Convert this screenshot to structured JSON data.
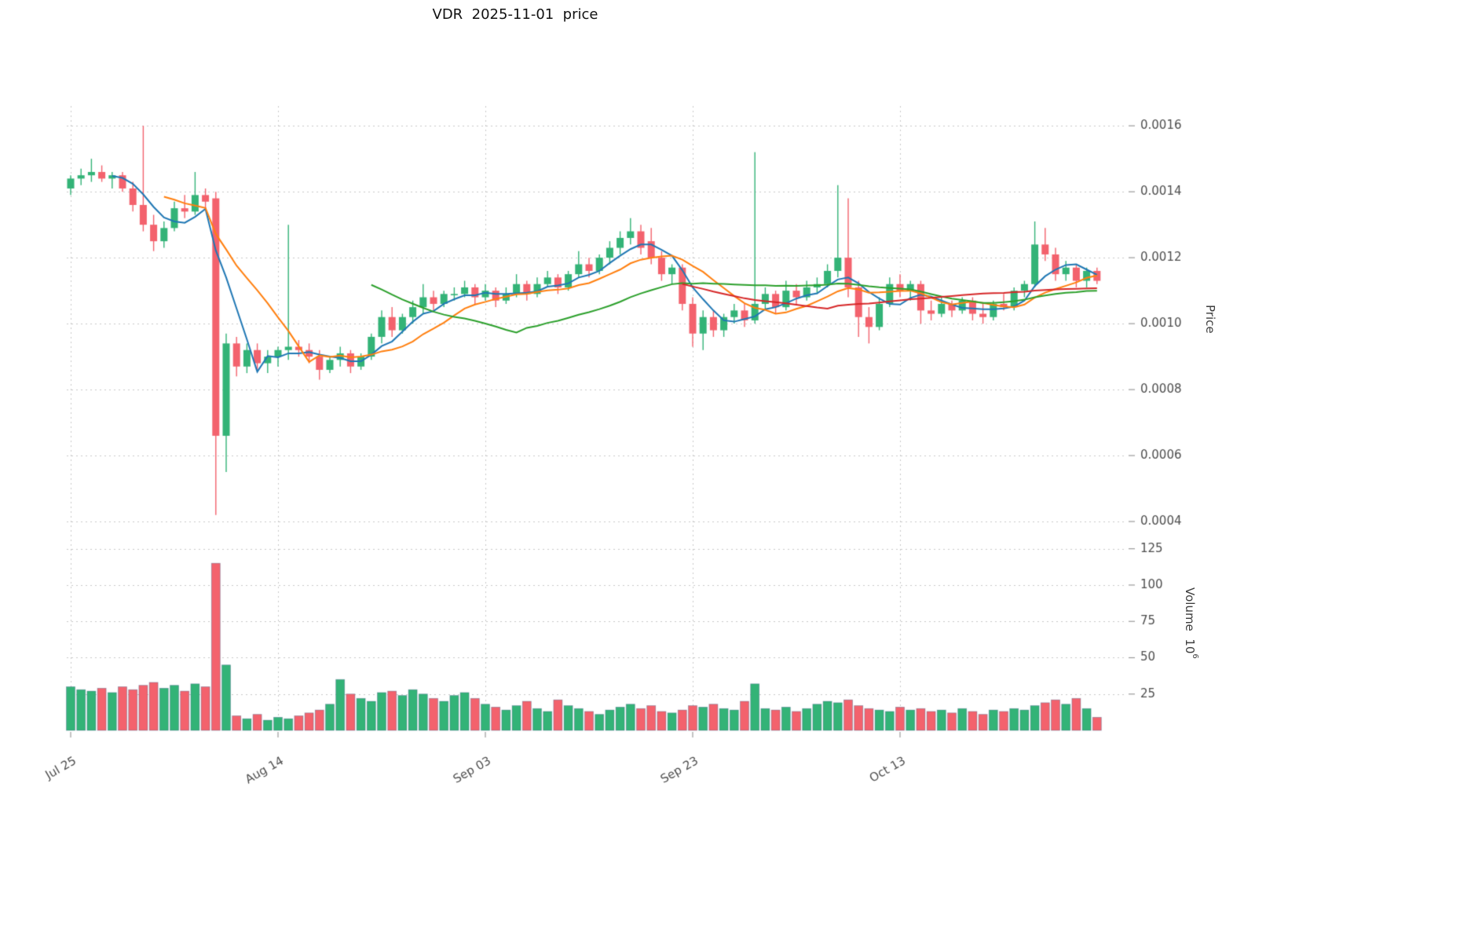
{
  "title": "VDR  2025-11-01  price",
  "axes": {
    "price_label": "Price",
    "volume_label": "Volume  10",
    "volume_exp": "6"
  },
  "chart_data": {
    "type": "candlestick+volume",
    "title": "VDR  2025-11-01  price",
    "x_ticks": [
      {
        "index": 0,
        "label": "Jul 25"
      },
      {
        "index": 20,
        "label": "Aug 14"
      },
      {
        "index": 40,
        "label": "Sep 03"
      },
      {
        "index": 60,
        "label": "Sep 23"
      },
      {
        "index": 80,
        "label": "Oct 13"
      }
    ],
    "price_ticks": [
      0.0004,
      0.0006,
      0.0008,
      0.001,
      0.0012,
      0.0014,
      0.0016
    ],
    "price_range": [
      0.000362,
      0.00166
    ],
    "volume_ticks": [
      25,
      50,
      75,
      100,
      125
    ],
    "volume_range": [
      0,
      127
    ],
    "volume_unit_exponent": 6,
    "grid": true,
    "legend": false,
    "colors": {
      "up": "#33b377",
      "down": "#f3626d",
      "grid": "#c9c9c9",
      "tick_text": "#4d4d4d",
      "bar_edge": "rgba(60,90,130,0.45)"
    },
    "moving_averages": [
      {
        "window": 5,
        "color": "#1f77b4"
      },
      {
        "window": 10,
        "color": "#ff7f0e"
      },
      {
        "window": 30,
        "color": "#2ca02c"
      },
      {
        "window": 60,
        "color": "#d62728"
      }
    ],
    "ohlc": [
      [
        0.00141,
        0.00145,
        0.00139,
        0.00144
      ],
      [
        0.00144,
        0.00147,
        0.00142,
        0.00145
      ],
      [
        0.00145,
        0.0015,
        0.00143,
        0.00146
      ],
      [
        0.00146,
        0.00148,
        0.00143,
        0.00144
      ],
      [
        0.00144,
        0.00146,
        0.00141,
        0.00145
      ],
      [
        0.00145,
        0.00146,
        0.0014,
        0.00141
      ],
      [
        0.00141,
        0.00143,
        0.00134,
        0.00136
      ],
      [
        0.00136,
        0.0016,
        0.00128,
        0.0013
      ],
      [
        0.0013,
        0.00133,
        0.00122,
        0.00125
      ],
      [
        0.00125,
        0.00131,
        0.00123,
        0.00129
      ],
      [
        0.00129,
        0.00137,
        0.00128,
        0.00135
      ],
      [
        0.00135,
        0.00139,
        0.00132,
        0.00134
      ],
      [
        0.00134,
        0.00146,
        0.00133,
        0.00139
      ],
      [
        0.00139,
        0.00141,
        0.00135,
        0.00137
      ],
      [
        0.00138,
        0.0014,
        0.00042,
        0.00066
      ],
      [
        0.00066,
        0.00097,
        0.00055,
        0.00094
      ],
      [
        0.00094,
        0.00096,
        0.00084,
        0.00087
      ],
      [
        0.00087,
        0.00094,
        0.00085,
        0.00092
      ],
      [
        0.00092,
        0.00094,
        0.00086,
        0.00088
      ],
      [
        0.00088,
        0.00092,
        0.00085,
        0.0009
      ],
      [
        0.0009,
        0.00093,
        0.00087,
        0.00092
      ],
      [
        0.00092,
        0.0013,
        0.00089,
        0.00093
      ],
      [
        0.00093,
        0.00095,
        0.0009,
        0.00092
      ],
      [
        0.00092,
        0.00094,
        0.00088,
        0.0009
      ],
      [
        0.0009,
        0.00092,
        0.00083,
        0.00086
      ],
      [
        0.00086,
        0.0009,
        0.00085,
        0.00089
      ],
      [
        0.00089,
        0.00093,
        0.00087,
        0.00091
      ],
      [
        0.00091,
        0.00092,
        0.00085,
        0.00087
      ],
      [
        0.00087,
        0.00091,
        0.00086,
        0.0009
      ],
      [
        0.0009,
        0.00097,
        0.00089,
        0.00096
      ],
      [
        0.00096,
        0.00104,
        0.00094,
        0.00102
      ],
      [
        0.00102,
        0.00105,
        0.00096,
        0.00098
      ],
      [
        0.00098,
        0.00103,
        0.00097,
        0.00102
      ],
      [
        0.00102,
        0.00107,
        0.001,
        0.00105
      ],
      [
        0.00105,
        0.00112,
        0.00103,
        0.00108
      ],
      [
        0.00108,
        0.0011,
        0.00104,
        0.00106
      ],
      [
        0.00106,
        0.0011,
        0.00105,
        0.00109
      ],
      [
        0.00109,
        0.00111,
        0.00107,
        0.00109
      ],
      [
        0.00109,
        0.00113,
        0.00108,
        0.00111
      ],
      [
        0.00111,
        0.00112,
        0.00106,
        0.00108
      ],
      [
        0.00108,
        0.00112,
        0.00107,
        0.0011
      ],
      [
        0.0011,
        0.00111,
        0.00105,
        0.00107
      ],
      [
        0.00107,
        0.00111,
        0.00106,
        0.00109
      ],
      [
        0.00109,
        0.00115,
        0.00108,
        0.00112
      ],
      [
        0.00112,
        0.00113,
        0.00107,
        0.00109
      ],
      [
        0.00109,
        0.00114,
        0.00108,
        0.00112
      ],
      [
        0.00112,
        0.00116,
        0.00111,
        0.00114
      ],
      [
        0.00114,
        0.00115,
        0.00109,
        0.00111
      ],
      [
        0.00111,
        0.00116,
        0.0011,
        0.00115
      ],
      [
        0.00115,
        0.00122,
        0.00114,
        0.00118
      ],
      [
        0.00118,
        0.0012,
        0.00114,
        0.00116
      ],
      [
        0.00116,
        0.00121,
        0.00115,
        0.0012
      ],
      [
        0.0012,
        0.00125,
        0.00118,
        0.00123
      ],
      [
        0.00123,
        0.00128,
        0.00121,
        0.00126
      ],
      [
        0.00126,
        0.00132,
        0.00124,
        0.00128
      ],
      [
        0.00128,
        0.0013,
        0.00121,
        0.00123
      ],
      [
        0.00125,
        0.00129,
        0.00118,
        0.0012
      ],
      [
        0.0012,
        0.00122,
        0.00113,
        0.00115
      ],
      [
        0.00115,
        0.00118,
        0.00112,
        0.00117
      ],
      [
        0.00117,
        0.00118,
        0.00104,
        0.00106
      ],
      [
        0.00106,
        0.00108,
        0.00093,
        0.00097
      ],
      [
        0.00097,
        0.00104,
        0.00092,
        0.00102
      ],
      [
        0.00102,
        0.00104,
        0.00096,
        0.00098
      ],
      [
        0.00098,
        0.00103,
        0.00096,
        0.00102
      ],
      [
        0.00102,
        0.00106,
        0.001,
        0.00104
      ],
      [
        0.00104,
        0.00106,
        0.00099,
        0.00101
      ],
      [
        0.00101,
        0.00152,
        0.001,
        0.00106
      ],
      [
        0.00106,
        0.00111,
        0.00104,
        0.00109
      ],
      [
        0.00109,
        0.0011,
        0.00103,
        0.00105
      ],
      [
        0.00105,
        0.00113,
        0.00104,
        0.0011
      ],
      [
        0.0011,
        0.00112,
        0.00106,
        0.00108
      ],
      [
        0.00108,
        0.00113,
        0.00107,
        0.00111
      ],
      [
        0.00111,
        0.00114,
        0.00109,
        0.00112
      ],
      [
        0.00112,
        0.00118,
        0.00111,
        0.00116
      ],
      [
        0.00116,
        0.00142,
        0.00114,
        0.0012
      ],
      [
        0.0012,
        0.00138,
        0.00108,
        0.00111
      ],
      [
        0.00111,
        0.00113,
        0.00096,
        0.00102
      ],
      [
        0.00102,
        0.00105,
        0.00094,
        0.00099
      ],
      [
        0.00099,
        0.00108,
        0.00098,
        0.00106
      ],
      [
        0.00106,
        0.00114,
        0.00105,
        0.00112
      ],
      [
        0.00112,
        0.00115,
        0.00108,
        0.0011
      ],
      [
        0.0011,
        0.00113,
        0.00107,
        0.00112
      ],
      [
        0.00112,
        0.00113,
        0.001,
        0.00104
      ],
      [
        0.00104,
        0.00107,
        0.00101,
        0.00103
      ],
      [
        0.00103,
        0.00108,
        0.00102,
        0.00106
      ],
      [
        0.00106,
        0.00107,
        0.00102,
        0.00104
      ],
      [
        0.00104,
        0.00108,
        0.00103,
        0.00107
      ],
      [
        0.00107,
        0.00108,
        0.00101,
        0.00103
      ],
      [
        0.00103,
        0.00106,
        0.001,
        0.00102
      ],
      [
        0.00102,
        0.00107,
        0.00101,
        0.00106
      ],
      [
        0.00106,
        0.00109,
        0.00104,
        0.00105
      ],
      [
        0.00105,
        0.00111,
        0.00104,
        0.0011
      ],
      [
        0.0011,
        0.00113,
        0.00108,
        0.00112
      ],
      [
        0.00112,
        0.00131,
        0.00111,
        0.00124
      ],
      [
        0.00124,
        0.00129,
        0.00119,
        0.00121
      ],
      [
        0.00121,
        0.00123,
        0.00113,
        0.00115
      ],
      [
        0.00115,
        0.00119,
        0.00113,
        0.00117
      ],
      [
        0.00117,
        0.00118,
        0.00111,
        0.00113
      ],
      [
        0.00113,
        0.00117,
        0.00111,
        0.00116
      ],
      [
        0.00116,
        0.00117,
        0.00112,
        0.00113
      ]
    ],
    "volume_millions": [
      30,
      28,
      27,
      29,
      26,
      30,
      28,
      31,
      33,
      29,
      31,
      27,
      32,
      30,
      115,
      45,
      10,
      8,
      11,
      7,
      9,
      8,
      10,
      12,
      14,
      18,
      35,
      25,
      22,
      20,
      26,
      27,
      24,
      28,
      25,
      22,
      20,
      24,
      26,
      22,
      18,
      16,
      14,
      17,
      20,
      15,
      13,
      21,
      17,
      15,
      13,
      11,
      14,
      16,
      18,
      15,
      17,
      13,
      12,
      14,
      17,
      16,
      18,
      15,
      14,
      20,
      32,
      15,
      14,
      16,
      13,
      15,
      18,
      20,
      19,
      21,
      17,
      15,
      14,
      13,
      16,
      14,
      15,
      13,
      14,
      12,
      15,
      13,
      11,
      14,
      13,
      15,
      14,
      17,
      19,
      21,
      18,
      22,
      15,
      9
    ]
  }
}
